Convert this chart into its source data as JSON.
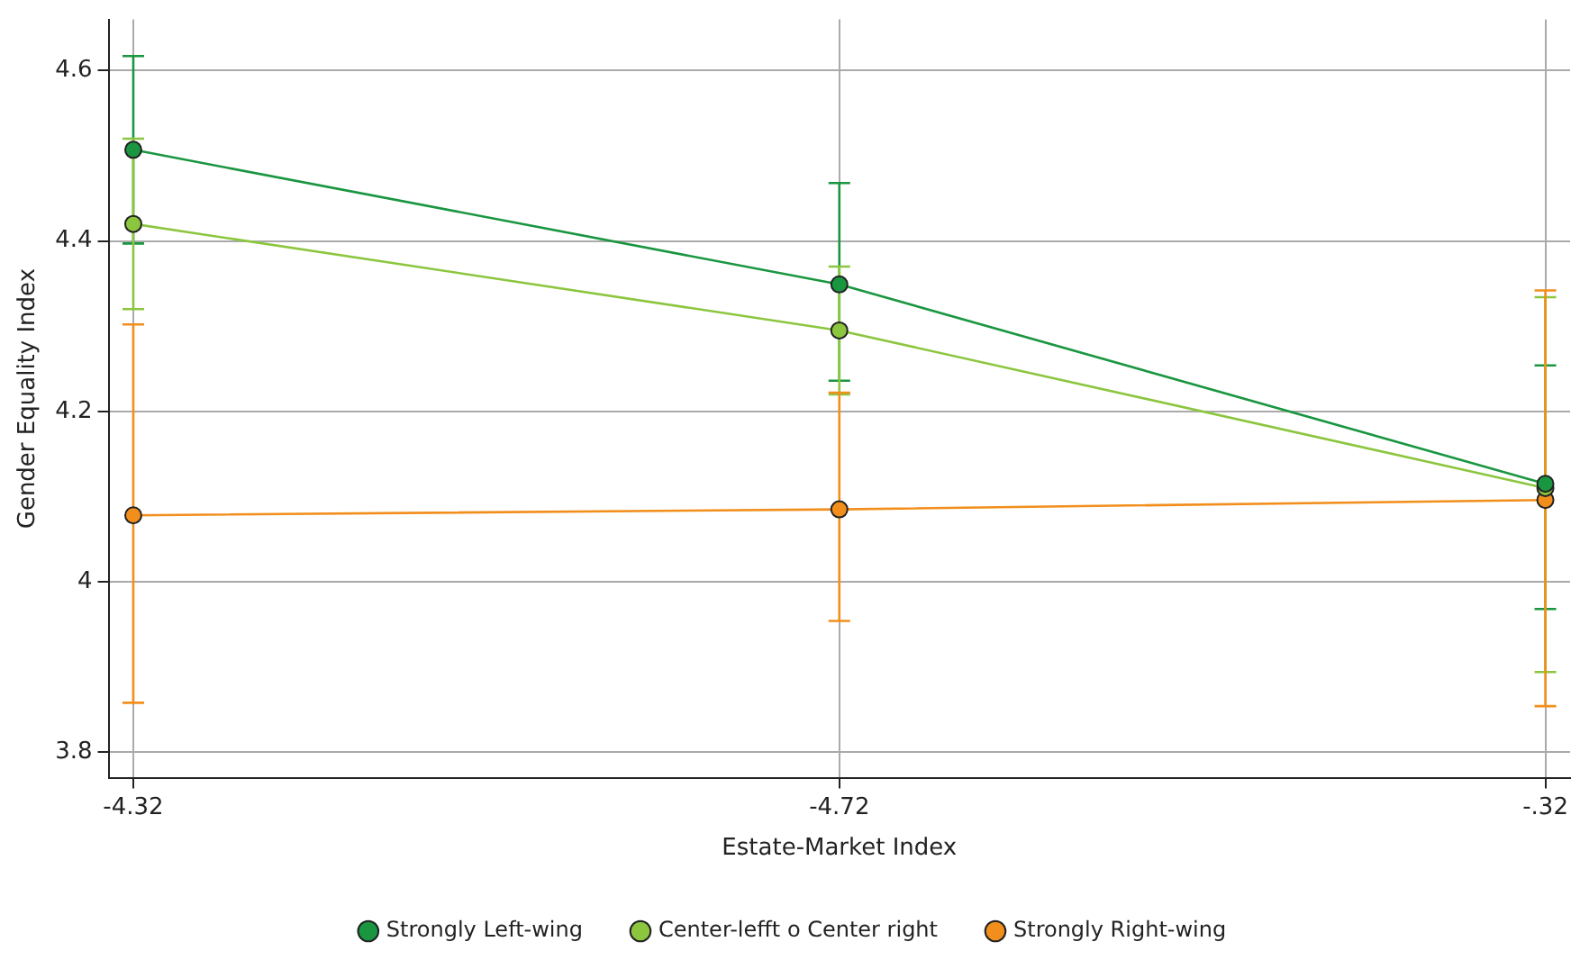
{
  "chart_data": {
    "type": "line",
    "xlabel": "Estate-Market Index",
    "ylabel": "Gender Equality Index",
    "categories": [
      "-4.32",
      "-4.72",
      "-.32"
    ],
    "ylim": [
      3.77,
      4.66
    ],
    "yticks": [
      3.8,
      4,
      4.2,
      4.4,
      4.6
    ],
    "grid": true,
    "legend": "bottom",
    "marker": "circle",
    "series": [
      {
        "name": "Strongly Left-wing",
        "color": "#1a9641",
        "values": [
          4.507,
          4.349,
          4.115
        ],
        "errors": [
          [
            4.397,
            4.617
          ],
          [
            4.236,
            4.468
          ],
          [
            3.968,
            4.254
          ]
        ]
      },
      {
        "name": "Center-lefft o Center right",
        "color": "#8cc63f",
        "values": [
          4.42,
          4.295,
          4.11
        ],
        "errors": [
          [
            4.32,
            4.52
          ],
          [
            4.22,
            4.37
          ],
          [
            3.894,
            4.334
          ]
        ]
      },
      {
        "name": "Strongly Right-wing",
        "color": "#f28e1c",
        "values": [
          4.078,
          4.085,
          4.096
        ],
        "errors": [
          [
            3.858,
            4.302
          ],
          [
            3.954,
            4.222
          ],
          [
            3.854,
            4.342
          ]
        ]
      }
    ]
  }
}
